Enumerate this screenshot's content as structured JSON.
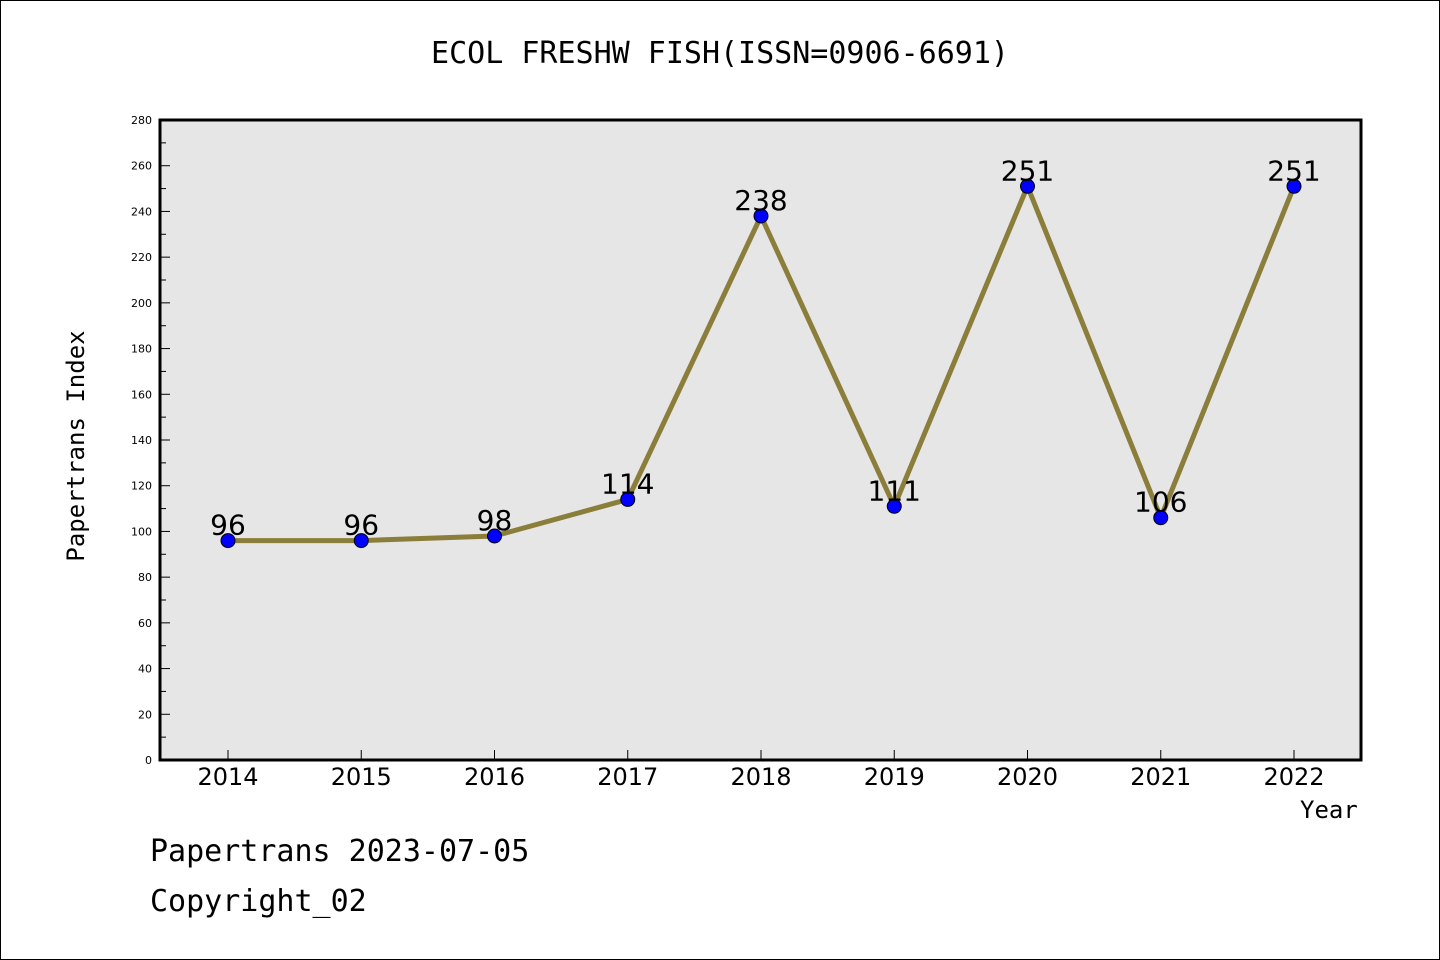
{
  "chart_data": {
    "type": "line",
    "title": "ECOL FRESHW FISH(ISSN=0906-6691)",
    "xlabel": "Year",
    "ylabel": "Papertrans Index",
    "categories": [
      "2014",
      "2015",
      "2016",
      "2017",
      "2018",
      "2019",
      "2020",
      "2021",
      "2022"
    ],
    "values": [
      96,
      96,
      98,
      114,
      238,
      111,
      251,
      106,
      251
    ],
    "ylim": [
      0,
      280
    ],
    "y_major_step": 20,
    "y_minor_step": 10,
    "grid": false,
    "line_color": "#8b7d3a",
    "marker_color": "#0000ff",
    "plot_background": "#e6e6e6"
  },
  "footer": {
    "line1": "Papertrans 2023-07-05",
    "line2": "Copyright_02"
  }
}
